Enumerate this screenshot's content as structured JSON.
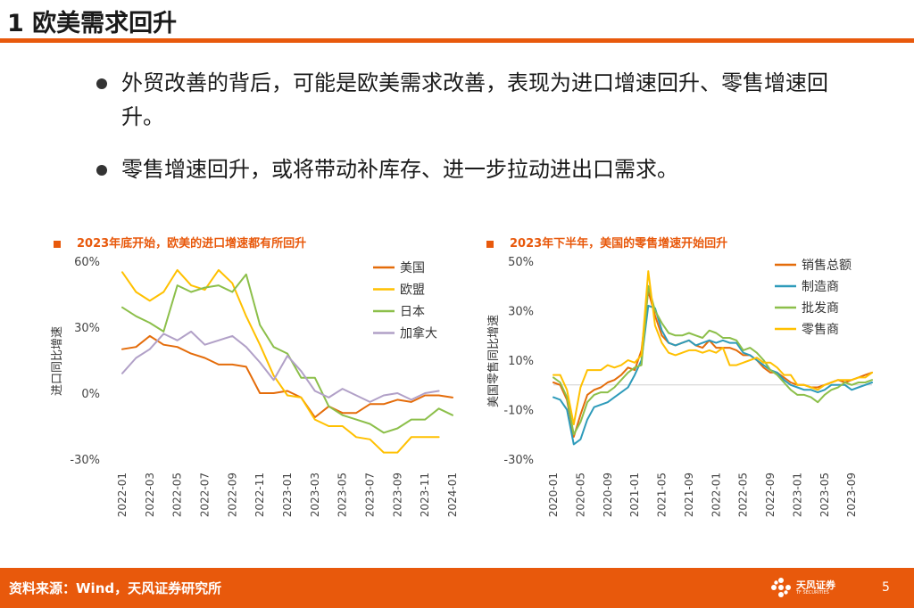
{
  "slide": {
    "title": "1 欧美需求回升",
    "bullets": [
      "外贸改善的背后，可能是欧美需求改善，表现为进口增速回升、零售增速回升。",
      "零售增速回升，或将带动补库存、进一步拉动进出口需求。"
    ]
  },
  "footer": {
    "source": "资料来源：Wind，天风证券研究所",
    "logo_text": "天风证券",
    "logo_sub": "TF SECURITIES",
    "page_number": "5"
  },
  "colors": {
    "accent": "#e8590c",
    "series_orange": "#e46c0a",
    "series_yellow": "#ffc000",
    "series_green": "#8cbf4a",
    "series_purple": "#b1a0c7",
    "series_blue": "#2e9bba"
  },
  "chart_data": [
    {
      "type": "line",
      "title": "2023年底开始，欧美的进口增速都有所回升",
      "xlabel": "",
      "ylabel": "进口同比增速",
      "ylim": [
        -30,
        60
      ],
      "yticks": [
        "60%",
        "30%",
        "0%",
        "-30%"
      ],
      "ytick_values": [
        60,
        30,
        0,
        -30
      ],
      "x": [
        "2022-01",
        "2022-02",
        "2022-03",
        "2022-04",
        "2022-05",
        "2022-06",
        "2022-07",
        "2022-08",
        "2022-09",
        "2022-10",
        "2022-11",
        "2022-12",
        "2023-01",
        "2023-02",
        "2023-03",
        "2023-04",
        "2023-05",
        "2023-06",
        "2023-07",
        "2023-08",
        "2023-09",
        "2023-10",
        "2023-11",
        "2023-12",
        "2024-01"
      ],
      "xticks": [
        "2022-01",
        "2022-03",
        "2022-05",
        "2022-07",
        "2022-09",
        "2022-11",
        "2023-01",
        "2023-03",
        "2023-05",
        "2023-07",
        "2023-09",
        "2023-11",
        "2024-01"
      ],
      "legend_position": "top-right",
      "series": [
        {
          "name": "美国",
          "color": "#e46c0a",
          "values": [
            20,
            21,
            26,
            22,
            21,
            18,
            16,
            13,
            13,
            12,
            0,
            0,
            1,
            -2,
            -11,
            -6,
            -9,
            -9,
            -5,
            -5,
            -3,
            -4,
            -1,
            -1,
            -2
          ]
        },
        {
          "name": "欧盟",
          "color": "#ffc000",
          "values": [
            55,
            46,
            42,
            46,
            56,
            49,
            47,
            56,
            50,
            35,
            22,
            8,
            -1,
            -2,
            -12,
            -15,
            -15,
            -20,
            -21,
            -27,
            -27,
            -20,
            -20,
            -20,
            null
          ]
        },
        {
          "name": "日本",
          "color": "#8cbf4a",
          "values": [
            39,
            35,
            32,
            28,
            49,
            46,
            48,
            49,
            46,
            54,
            31,
            21,
            18,
            7,
            7,
            -6,
            -10,
            -12,
            -14,
            -18,
            -16,
            -12,
            -12,
            -7,
            -10
          ]
        },
        {
          "name": "加拿大",
          "color": "#b1a0c7",
          "values": [
            9,
            16,
            20,
            27,
            24,
            28,
            22,
            24,
            26,
            21,
            14,
            6,
            17,
            10,
            1,
            -2,
            2,
            -1,
            -4,
            -1,
            0,
            -3,
            0,
            1,
            null
          ]
        }
      ]
    },
    {
      "type": "line",
      "title": "2023年下半年，美国的零售增速开始回升",
      "xlabel": "",
      "ylabel": "美国零售同比增速",
      "ylim": [
        -30,
        50
      ],
      "yticks": [
        "50%",
        "30%",
        "10%",
        "-10%",
        "-30%"
      ],
      "ytick_values": [
        50,
        30,
        10,
        -10,
        -30
      ],
      "x": [
        "2020-01",
        "2020-02",
        "2020-03",
        "2020-04",
        "2020-05",
        "2020-06",
        "2020-07",
        "2020-08",
        "2020-09",
        "2020-10",
        "2020-11",
        "2020-12",
        "2021-01",
        "2021-02",
        "2021-03",
        "2021-04",
        "2021-05",
        "2021-06",
        "2021-07",
        "2021-08",
        "2021-09",
        "2021-10",
        "2021-11",
        "2021-12",
        "2022-01",
        "2022-02",
        "2022-03",
        "2022-04",
        "2022-05",
        "2022-06",
        "2022-07",
        "2022-08",
        "2022-09",
        "2022-10",
        "2022-11",
        "2022-12",
        "2023-01",
        "2023-02",
        "2023-03",
        "2023-04",
        "2023-05",
        "2023-06",
        "2023-07",
        "2023-08",
        "2023-09",
        "2023-10",
        "2023-11",
        "2023-12"
      ],
      "xticks": [
        "2020-01",
        "2020-05",
        "2020-09",
        "2021-01",
        "2021-05",
        "2021-09",
        "2022-01",
        "2022-05",
        "2022-09",
        "2023-01",
        "2023-05",
        "2023-09"
      ],
      "legend_position": "top-right",
      "series": [
        {
          "name": "销售总额",
          "color": "#e46c0a",
          "values": [
            1,
            0,
            -6,
            -21,
            -12,
            -4,
            -2,
            -1,
            1,
            2,
            4,
            7,
            6,
            14,
            38,
            28,
            20,
            17,
            16,
            17,
            18,
            16,
            15,
            18,
            15,
            15,
            15,
            14,
            12,
            12,
            10,
            7,
            5,
            5,
            3,
            1,
            0,
            0,
            -1,
            -1,
            0,
            1,
            2,
            1,
            2,
            3,
            4,
            5
          ]
        },
        {
          "name": "制造商",
          "color": "#2e9bba",
          "values": [
            -5,
            -6,
            -10,
            -24,
            -22,
            -14,
            -9,
            -8,
            -7,
            -5,
            -3,
            -1,
            4,
            10,
            32,
            31,
            22,
            17,
            16,
            17,
            18,
            16,
            17,
            18,
            17,
            18,
            17,
            17,
            13,
            12,
            10,
            8,
            6,
            5,
            2,
            0,
            -1,
            -2,
            -2,
            -3,
            -2,
            0,
            0,
            0,
            -2,
            -1,
            0,
            1
          ]
        },
        {
          "name": "批发商",
          "color": "#8cbf4a",
          "values": [
            3,
            1,
            -5,
            -20,
            -15,
            -7,
            -4,
            -3,
            -3,
            -1,
            2,
            5,
            7,
            8,
            40,
            30,
            25,
            21,
            20,
            20,
            21,
            20,
            19,
            22,
            21,
            19,
            19,
            18,
            14,
            15,
            13,
            10,
            6,
            4,
            1,
            -2,
            -4,
            -4,
            -5,
            -7,
            -4,
            -2,
            -1,
            1,
            0,
            1,
            1,
            2
          ]
        },
        {
          "name": "零售商",
          "color": "#ffc000",
          "values": [
            4,
            4,
            -2,
            -16,
            -1,
            6,
            6,
            6,
            8,
            7,
            8,
            10,
            9,
            12,
            46,
            24,
            17,
            13,
            12,
            13,
            14,
            14,
            13,
            14,
            13,
            15,
            8,
            8,
            9,
            10,
            11,
            9,
            9,
            7,
            4,
            4,
            0,
            0,
            -1,
            -2,
            0,
            1,
            2,
            2,
            2,
            3,
            3,
            5
          ]
        }
      ]
    }
  ]
}
